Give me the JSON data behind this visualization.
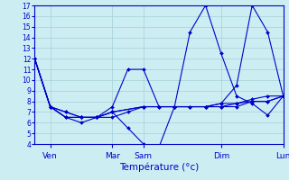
{
  "title": "Température (°c)",
  "background_color": "#cceef2",
  "grid_color": "#aad4dc",
  "line_color": "#0000cc",
  "xlim": [
    0,
    16
  ],
  "ylim": [
    4,
    17
  ],
  "yticks": [
    4,
    5,
    6,
    7,
    8,
    9,
    10,
    11,
    12,
    13,
    14,
    15,
    16,
    17
  ],
  "xtick_positions": [
    1,
    5,
    7,
    12,
    16
  ],
  "xtick_labels": [
    "Ven",
    "Mar",
    "Sam",
    "Dim",
    "Lun"
  ],
  "series": [
    {
      "x": [
        0,
        1,
        2,
        3,
        4,
        5,
        6,
        7,
        8,
        9,
        10,
        11,
        12,
        13,
        14,
        15,
        16
      ],
      "y": [
        12,
        7.5,
        7.0,
        6.5,
        6.5,
        7.0,
        5.5,
        4.0,
        3.7,
        7.5,
        14.5,
        17.0,
        12.5,
        8.5,
        7.8,
        6.7,
        8.5
      ]
    },
    {
      "x": [
        0,
        1,
        2,
        3,
        4,
        5,
        6,
        7,
        8,
        9,
        10,
        11,
        12,
        13,
        14,
        15,
        16
      ],
      "y": [
        12,
        7.5,
        6.5,
        6.5,
        6.5,
        7.5,
        11.0,
        11.0,
        7.5,
        7.5,
        7.5,
        7.5,
        7.5,
        7.5,
        8.0,
        8.0,
        8.5
      ]
    },
    {
      "x": [
        0,
        1,
        2,
        3,
        4,
        5,
        6,
        7,
        8,
        9,
        10,
        11,
        12,
        13,
        14,
        15,
        16
      ],
      "y": [
        12,
        7.5,
        6.5,
        6.0,
        6.5,
        6.5,
        7.0,
        7.5,
        7.5,
        7.5,
        7.5,
        7.5,
        7.8,
        7.8,
        8.0,
        8.0,
        8.5
      ]
    },
    {
      "x": [
        0,
        1,
        2,
        3,
        4,
        5,
        7,
        9,
        11,
        12,
        13,
        14,
        15,
        16
      ],
      "y": [
        12,
        7.5,
        7.0,
        6.5,
        6.5,
        7.0,
        7.5,
        7.5,
        7.5,
        7.8,
        9.5,
        17.0,
        14.5,
        8.5
      ]
    },
    {
      "x": [
        0,
        1,
        2,
        3,
        4,
        5,
        7,
        9,
        11,
        12,
        13,
        14,
        15,
        16
      ],
      "y": [
        12,
        7.5,
        6.5,
        6.5,
        6.5,
        7.0,
        7.5,
        7.5,
        7.5,
        7.5,
        7.8,
        8.2,
        8.5,
        8.5
      ]
    }
  ]
}
